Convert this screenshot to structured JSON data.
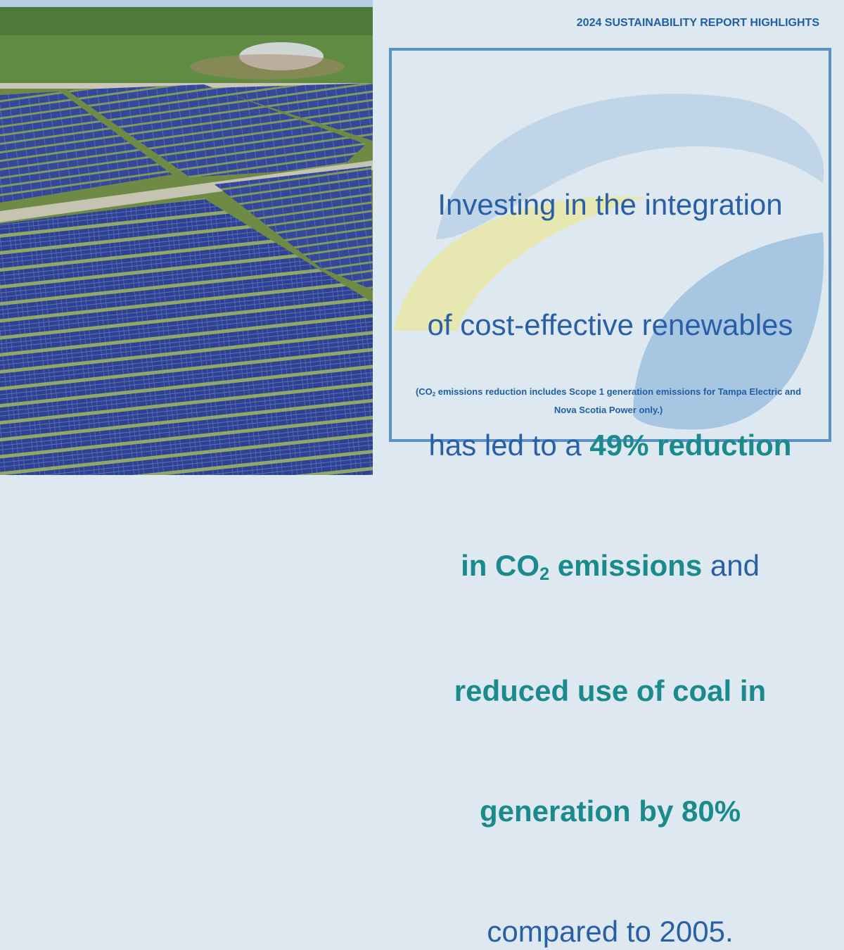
{
  "header": {
    "title": "2024 SUSTAINABILITY REPORT HIGHLIGHTS"
  },
  "headline": [
    "Investing in the integration",
    "of cost-effective renewables",
    "has led to a ",
    "49% reduction",
    "in CO",
    "2",
    " emissions",
    " and",
    "reduced use of coal in",
    "generation by 80%",
    "compared to 2005."
  ],
  "footnote": [
    "(CO",
    "2",
    " emissions reduction includes Scope 1 generation emissions for Tampa Electric and Nova Scotia Power only.)"
  ]
}
